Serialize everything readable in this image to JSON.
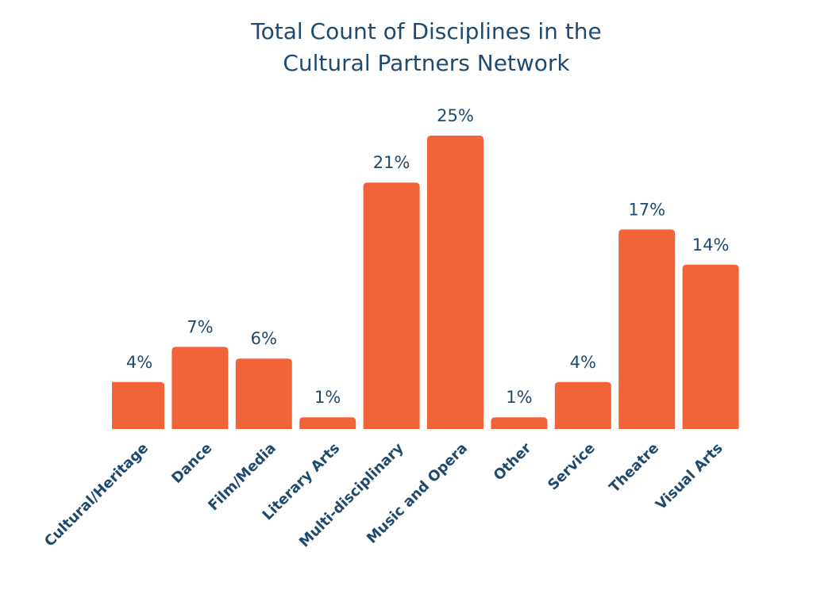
{
  "chart_data": {
    "type": "bar",
    "title_lines": [
      "Total Count of Disciplines in the",
      "Cultural Partners Network"
    ],
    "categories": [
      "Cultural/Heritage",
      "Dance",
      "Film/Media",
      "Literary Arts",
      "Multi-disciplinary",
      "Music and Opera",
      "Other",
      "Service",
      "Theatre",
      "Visual Arts"
    ],
    "values": [
      4,
      7,
      6,
      1,
      21,
      25,
      1,
      4,
      17,
      14
    ],
    "data_labels": [
      "4%",
      "7%",
      "6%",
      "1%",
      "21%",
      "25%",
      "1%",
      "4%",
      "17%",
      "14%"
    ],
    "unit": "%",
    "xlabel": "",
    "ylabel": "",
    "ylim": [
      0,
      25
    ],
    "grid": false,
    "legend": "none",
    "bar_color": "#f26339",
    "text_color": "#1f4a6e"
  }
}
